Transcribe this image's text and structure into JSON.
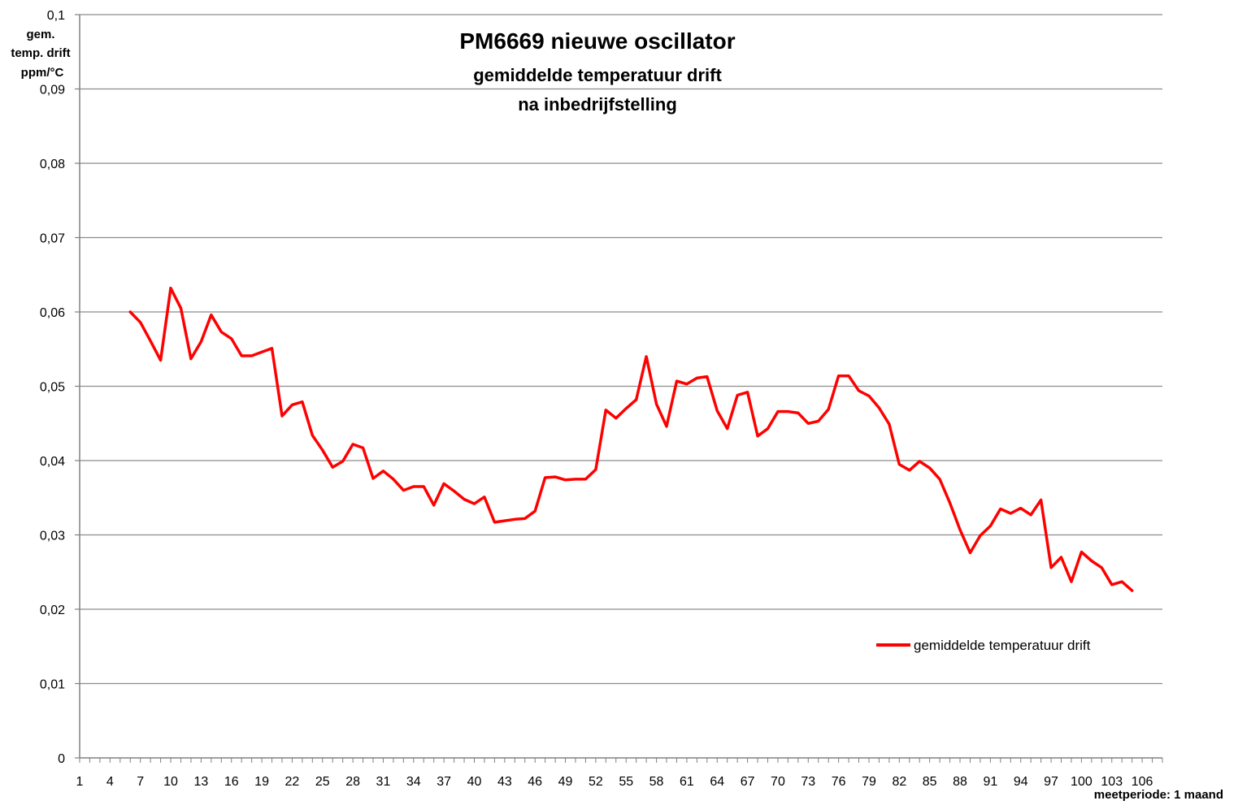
{
  "chart_data": {
    "type": "line",
    "title": "PM6669 nieuwe oscillator",
    "subtitle_lines": [
      "gemiddelde temperatuur drift",
      "na inbedrijfstelling"
    ],
    "ylabel_lines": [
      "gem.",
      "temp. drift",
      "ppm/°C"
    ],
    "xlabel": "meetperiode: 1 maand",
    "ylim": [
      0,
      0.1
    ],
    "yticks": [
      0,
      0.01,
      0.02,
      0.03,
      0.04,
      0.05,
      0.06,
      0.07,
      0.08,
      0.09,
      0.1
    ],
    "ytick_labels": [
      "0",
      "0,01",
      "0,02",
      "0,03",
      "0,04",
      "0,05",
      "0,06",
      "0,07",
      "0,08",
      "0,09",
      "0,1"
    ],
    "xlim": [
      1,
      108
    ],
    "xtick_labels": [
      "1",
      "4",
      "7",
      "10",
      "13",
      "16",
      "19",
      "22",
      "25",
      "28",
      "31",
      "34",
      "37",
      "40",
      "43",
      "46",
      "49",
      "52",
      "55",
      "58",
      "61",
      "64",
      "67",
      "70",
      "73",
      "76",
      "79",
      "82",
      "85",
      "88",
      "91",
      "94",
      "97",
      "100",
      "103",
      "106"
    ],
    "xtick_values": [
      1,
      4,
      7,
      10,
      13,
      16,
      19,
      22,
      25,
      28,
      31,
      34,
      37,
      40,
      43,
      46,
      49,
      52,
      55,
      58,
      61,
      64,
      67,
      70,
      73,
      76,
      79,
      82,
      85,
      88,
      91,
      94,
      97,
      100,
      103,
      106
    ],
    "grid": "horizontal",
    "legend_position": "right",
    "color": "#ff0000",
    "series": [
      {
        "name": "gemiddelde temperatuur drift",
        "x": [
          6,
          7,
          8,
          9,
          10,
          11,
          12,
          13,
          14,
          15,
          16,
          17,
          18,
          19,
          20,
          21,
          22,
          23,
          24,
          25,
          26,
          27,
          28,
          29,
          30,
          31,
          32,
          33,
          34,
          35,
          36,
          37,
          38,
          39,
          40,
          41,
          42,
          43,
          44,
          45,
          46,
          47,
          48,
          49,
          50,
          51,
          52,
          53,
          54,
          55,
          56,
          57,
          58,
          59,
          60,
          61,
          62,
          63,
          64,
          65,
          66,
          67,
          68,
          69,
          70,
          71,
          72,
          73,
          74,
          75,
          76,
          77,
          78,
          79,
          80,
          81,
          82,
          83,
          84,
          85,
          86,
          87,
          88,
          89,
          90,
          91,
          92,
          93,
          94,
          95,
          96,
          97,
          98,
          99,
          100,
          101,
          102,
          103,
          104,
          105
        ],
        "values": [
          0.06,
          0.0586,
          0.0561,
          0.0535,
          0.0632,
          0.0605,
          0.0537,
          0.056,
          0.0596,
          0.0573,
          0.0564,
          0.0541,
          0.0541,
          0.0546,
          0.0551,
          0.046,
          0.0475,
          0.0479,
          0.0434,
          0.0414,
          0.0391,
          0.0399,
          0.0422,
          0.0417,
          0.0376,
          0.0386,
          0.0375,
          0.036,
          0.0365,
          0.0365,
          0.034,
          0.0369,
          0.0359,
          0.0348,
          0.0342,
          0.0351,
          0.0317,
          0.0319,
          0.0321,
          0.0322,
          0.0332,
          0.0377,
          0.0378,
          0.0374,
          0.0375,
          0.0375,
          0.0388,
          0.0468,
          0.0457,
          0.047,
          0.0482,
          0.054,
          0.0476,
          0.0446,
          0.0507,
          0.0503,
          0.0511,
          0.0513,
          0.0467,
          0.0443,
          0.0488,
          0.0492,
          0.0433,
          0.0443,
          0.0466,
          0.0466,
          0.0464,
          0.045,
          0.0453,
          0.0469,
          0.0514,
          0.0514,
          0.0494,
          0.0487,
          0.0471,
          0.0449,
          0.0395,
          0.0387,
          0.0399,
          0.039,
          0.0375,
          0.0343,
          0.0307,
          0.0276,
          0.0299,
          0.0312,
          0.0335,
          0.0329,
          0.0336,
          0.0327,
          0.0347,
          0.0256,
          0.027,
          0.0237,
          0.0277,
          0.0265,
          0.0256,
          0.0233,
          0.0237,
          0.0225
        ]
      }
    ]
  }
}
